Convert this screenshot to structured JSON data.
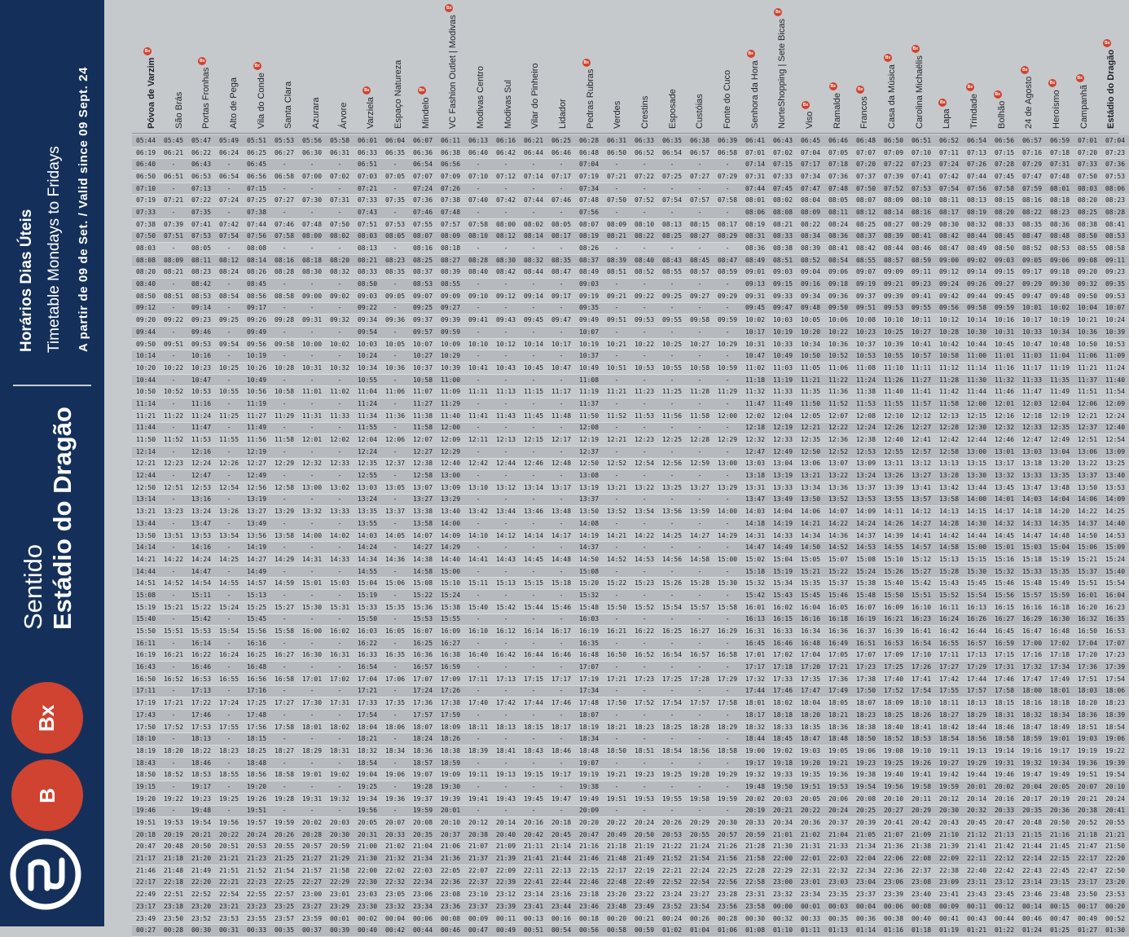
{
  "sidebar": {
    "title": "Horários Dias Úteis",
    "subtitle": "Timetable Mondays to Fridays",
    "validity": "A  partir  de  09  de  Set.  /  Valid  since  09  Sept.  24",
    "direction_label": "Sentido",
    "direction_destination": "Estádio do Dragão",
    "badges": [
      "Bx",
      "B"
    ],
    "logo_icon": "metro-porto-logo-icon"
  },
  "colors": {
    "navy": "#14305a",
    "red": "#cf4330",
    "background": "#c6c9cc"
  },
  "marker_label": "Bx",
  "stops": [
    {
      "name": "Póvoa de Varzim",
      "marker": true,
      "emphasis": true
    },
    {
      "name": "São Brás",
      "marker": false
    },
    {
      "name": "Portas Fronhas",
      "marker": true
    },
    {
      "name": "Alto de Pega",
      "marker": false
    },
    {
      "name": "Vila do Conde",
      "marker": true
    },
    {
      "name": "Santa Clara",
      "marker": false
    },
    {
      "name": "Azurara",
      "marker": false
    },
    {
      "name": "Árvore",
      "marker": false
    },
    {
      "name": "Varziela",
      "marker": true
    },
    {
      "name": "Espaço Natureza",
      "marker": false
    },
    {
      "name": "Mindelo",
      "marker": true
    },
    {
      "name": "VC Fashion Outlet | Modivas",
      "marker": true
    },
    {
      "name": "Modivas Centro",
      "marker": false
    },
    {
      "name": "Modivas Sul",
      "marker": false
    },
    {
      "name": "Vilar do Pinheiro",
      "marker": false
    },
    {
      "name": "Lidador",
      "marker": false
    },
    {
      "name": "Pedras Rubras",
      "marker": true
    },
    {
      "name": "Verdes",
      "marker": false
    },
    {
      "name": "Crestins",
      "marker": false
    },
    {
      "name": "Esposade",
      "marker": false
    },
    {
      "name": "Custóias",
      "marker": false
    },
    {
      "name": "Fonte do Cuco",
      "marker": false
    },
    {
      "name": "Senhora da Hora",
      "marker": true
    },
    {
      "name": "NorteShopping | Sete Bicas",
      "marker": true
    },
    {
      "name": "Viso",
      "marker": true
    },
    {
      "name": "Ramalde",
      "marker": true
    },
    {
      "name": "Francos",
      "marker": true
    },
    {
      "name": "Casa da Música",
      "marker": true
    },
    {
      "name": "Carolina Michaëlis",
      "marker": true
    },
    {
      "name": "Lapa",
      "marker": true
    },
    {
      "name": "Trindade",
      "marker": true
    },
    {
      "name": "Bolhão",
      "marker": true
    },
    {
      "name": "24 de Agosto",
      "marker": true
    },
    {
      "name": "Heroísmo",
      "marker": true
    },
    {
      "name": "Campanhã",
      "marker": true
    },
    {
      "name": "Estádio do Dragão",
      "marker": true,
      "emphasis": true
    }
  ],
  "rows": [
    "05:44 05:45 05:47 05:49 05:51 05:53 05:56 05:58 06:01 06:04 06:07 06:11 06:13 06:16 06:21 06:25 06:28 06:31 06:33 06:35 06:38 06:39 06:41 06:43 06:45 06:46 06:48 06:50 06:51 06:52 06:54 06:56 06:57 06:59 07:01 07:04",
    "06:19 06:21 06:22 06:24 06:25 06:27 06:30 06:31 06:33 06:35 06:36 06:38 06:40 06:42 06:44 06:46 06:48 06:50 06:52 06:54 06:57 06:58 07:01 07:02 07:04 07:05 07:07 07:09 07:10 07:11 07:13 07:15 07:16 07:18 07:20 07:23",
    "06:40 - 06:43 - 06:45 - - - 06:51 - 06:54 06:56 - - - - 07:04 - - - - - 07:14 07:15 07:17 07:18 07:20 07:22 07:23 07:24 07:26 07:28 07:29 07:31 07:33 07:36",
    "06:50 06:51 06:53 06:54 06:56 06:58 07:00 07:02 07:03 07:05 07:07 07:09 07:10 07:12 07:14 07:17 07:19 07:21 07:22 07:25 07:27 07:29 07:31 07:33 07:34 07:36 07:37 07:39 07:41 07:42 07:44 07:45 07:47 07:48 07:50 07:53",
    "07:10 - 07:13 - 07:15 - - - 07:21 - 07:24 07:26 - - - - 07:34 - - - - - 07:44 07:45 07:47 07:48 07:50 07:52 07:53 07:54 07:56 07:58 07:59 08:01 08:03 08:06",
    "07:19 07:21 07:22 07:24 07:25 07:27 07:30 07:31 07:33 07:35 07:36 07:38 07:40 07:42 07:44 07:46 07:48 07:50 07:52 07:54 07:57 07:58 08:01 08:02 08:04 08:05 08:07 08:09 08:10 08:11 08:13 08:15 08:16 08:18 08:20 08:23",
    "07:33 - 07:35 - 07:38 - - - 07:43 - 07:46 07:48 - - - - 07:56 - - - - - 08:06 08:08 08:09 08:11 08:12 08:14 08:16 08:17 08:19 08:20 08:22 08:23 08:25 08:28",
    "07:38 07:39 07:41 07:42 07:44 07:46 07:48 07:50 07:51 07:53 07:55 07:57 07:58 08:00 08:02 08:05 08:07 08:09 08:10 08:13 08:15 08:17 08:19 08:21 08:22 08:24 08:25 08:27 08:29 08:30 08:32 08:33 08:35 08:36 08:38 08:41",
    "07:50 07:51 07:53 07:54 07:56 07:58 08:00 08:02 08:03 08:05 08:07 08:09 08:10 08:12 08:14 08:17 08:19 08:21 08:22 08:25 08:27 08:29 08:31 08:33 08:34 08:36 08:37 08:39 08:41 08:42 08:44 08:45 08:47 08:48 08:50 08:53",
    "08:03 - 08:05 - 08:08 - - - 08:13 - 08:16 08:18 - - - - 08:26 - - - - - 08:36 08:38 08:39 08:41 08:42 08:44 08:46 08:47 08:49 08:50 08:52 08:53 08:55 08:58",
    "08:08 08:09 08:11 08:12 08:14 08:16 08:18 08:20 08:21 08:23 08:25 08:27 08:28 08:30 08:32 08:35 08:37 08:39 08:40 08:43 08:45 08:47 08:49 08:51 08:52 08:54 08:55 08:57 08:59 09:00 09:02 09:03 09:05 09:06 09:08 09:11",
    "08:20 08:21 08:23 08:24 08:26 08:28 08:30 08:32 08:33 08:35 08:37 08:39 08:40 08:42 08:44 08:47 08:49 08:51 08:52 08:55 08:57 08:59 09:01 09:03 09:04 09:06 09:07 09:09 09:11 09:12 09:14 09:15 09:17 09:18 09:20 09:23",
    "08:40 - 08:42 - 08:45 - - - 08:50 - 08:53 08:55 - - - - 09:03 - - - - - 09:13 09:15 09:16 09:18 09:19 09:21 09:23 09:24 09:26 09:27 09:29 09:30 09:32 09:35",
    "08:50 08:51 08:53 08:54 08:56 08:58 09:00 09:02 09:03 09:05 09:07 09:09 09:10 09:12 09:14 09:17 09:19 09:21 09:22 09:25 09:27 09:29 09:31 09:33 09:34 09:36 09:37 09:39 09:41 09:42 09:44 09:45 09:47 09:48 09:50 09:53",
    "09:12 - 09:14 - 09:17 - - - 09:22 - 09:25 09:27 - - - - 09:35 - - - - - 09:45 09:47 09:48 09:50 09:51 09:53 09:55 09:56 09:58 09:59 10:01 10:02 10:04 10:07",
    "09:20 09:22 09:23 09:25 09:26 09:28 09:31 09:32 09:34 09:36 09:37 09:39 09:41 09:43 09:45 09:47 09:49 09:51 09:53 09:55 09:58 09:59 10:02 10:03 10:05 10:06 10:08 10:10 10:11 10:12 10:14 10:16 10:17 10:19 10:21 10:24",
    "09:44 - 09:46 - 09:49 - - - 09:54 - 09:57 09:59 - - - - 10:07 - - - - - 10:17 10:19 10:20 10:22 10:23 10:25 10:27 10:28 10:30 10:31 10:33 10:34 10:36 10:39",
    "09:50 09:51 09:53 09:54 09:56 09:58 10:00 10:02 10:03 10:05 10:07 10:09 10:10 10:12 10:14 10:17 10:19 10:21 10:22 10:25 10:27 10:29 10:31 10:33 10:34 10:36 10:37 10:39 10:41 10:42 10:44 10:45 10:47 10:48 10:50 10:53",
    "10:14 - 10:16 - 10:19 - - - 10:24 - 10:27 10:29 - - - - 10:37 - - - - - 10:47 10:49 10:50 10:52 10:53 10:55 10:57 10:58 11:00 11:01 11:03 11:04 11:06 11:09",
    "10:20 10:22 10:23 10:25 10:26 10:28 10:31 10:32 10:34 10:36 10:37 10:39 10:41 10:43 10:45 10:47 10:49 10:51 10:53 10:55 10:58 10:59 11:02 11:03 11:05 11:06 11:08 11:10 11:11 11:12 11:14 11:16 11:17 11:19 11:21 11:24",
    "10:44 - 10:47 - 10:49 - - - 10:55 - 10:58 11:00 - - - - 11:08 - - - - - 11:18 11:19 11:21 11:22 11:24 11:26 11:27 11:28 11:30 11:32 11:33 11:35 11:37 11:40",
    "10:50 10:52 10:53 10:55 10:56 10:58 11:01 11:02 11:04 11:06 11:07 11:09 11:11 11:13 11:15 11:17 11:19 11:21 11:23 11:25 11:28 11:29 11:32 11:33 11:35 11:36 11:38 11:40 11:41 11:42 11:44 11:46 11:47 11:49 11:51 11:54",
    "11:14 - 11:16 - 11:19 - - - 11:24 - 11:27 11:29 - - - - 11:37 - - - - - 11:47 11:49 11:50 11:52 11:53 11:55 11:57 11:58 12:00 12:01 12:03 12:04 12:06 12:09",
    "11:21 11:22 11:24 11:25 11:27 11:29 11:31 11:33 11:34 11:36 11:38 11:40 11:41 11:43 11:45 11:48 11:50 11:52 11:53 11:56 11:58 12:00 12:02 12:04 12:05 12:07 12:08 12:10 12:12 12:13 12:15 12:16 12:18 12:19 12:21 12:24",
    "11:44 - 11:47 - 11:49 - - - 11:55 - 11:58 12:00 - - - - 12:08 - - - - - 12:18 12:19 12:21 12:22 12:24 12:26 12:27 12:28 12:30 12:32 12:33 12:35 12:37 12:40",
    "11:50 11:52 11:53 11:55 11:56 11:58 12:01 12:02 12:04 12:06 12:07 12:09 12:11 12:13 12:15 12:17 12:19 12:21 12:23 12:25 12:28 12:29 12:32 12:33 12:35 12:36 12:38 12:40 12:41 12:42 12:44 12:46 12:47 12:49 12:51 12:54",
    "12:14 - 12:16 - 12:19 - - - 12:24 - 12:27 12:29 - - - - 12:37 - - - - - 12:47 12:49 12:50 12:52 12:53 12:55 12:57 12:58 13:00 13:01 13:03 13:04 13:06 13:09",
    "12:21 12:23 12:24 12:26 12:27 12:29 12:32 12:33 12:35 12:37 12:38 12:40 12:42 12:44 12:46 12:48 12:50 12:52 12:54 12:56 12:59 13:00 13:03 13:04 13:06 13:07 13:09 13:11 13:12 13:13 13:15 13:17 13:18 13:20 13:22 13:25",
    "12:44 - 12:47 - 12:49 - - - 12:55 - 12:58 13:00 - - - - 13:08 - - - - - 13:18 13:19 13:21 13:22 13:24 13:26 13:27 13:28 13:30 13:32 13:33 13:35 13:37 13:40",
    "12:50 12:51 12:53 12:54 12:56 12:58 13:00 13:02 13:03 13:05 13:07 13:09 13:10 13:12 13:14 13:17 13:19 13:21 13:22 13:25 13:27 13:29 13:31 13:33 13:34 13:36 13:37 13:39 13:41 13:42 13:44 13:45 13:47 13:48 13:50 13:53",
    "13:14 - 13:16 - 13:19 - - - 13:24 - 13:27 13:29 - - - - 13:37 - - - - - 13:47 13:49 13:50 13:52 13:53 13:55 13:57 13:58 14:00 14:01 14:03 14:04 14:06 14:09",
    "13:21 13:23 13:24 13:26 13:27 13:29 13:32 13:33 13:35 13:37 13:38 13:40 13:42 13:44 13:46 13:48 13:50 13:52 13:54 13:56 13:59 14:00 14:03 14:04 14:06 14:07 14:09 14:11 14:12 14:13 14:15 14:17 14:18 14:20 14:22 14:25",
    "13:44 - 13:47 - 13:49 - - - 13:55 - 13:58 14:00 - - - - 14:08 - - - - - 14:18 14:19 14:21 14:22 14:24 14:26 14:27 14:28 14:30 14:32 14:33 14:35 14:37 14:40",
    "13:50 13:51 13:53 13:54 13:56 13:58 14:00 14:02 14:03 14:05 14:07 14:09 14:10 14:12 14:14 14:17 14:19 14:21 14:22 14:25 14:27 14:29 14:31 14:33 14:34 14:36 14:37 14:39 14:41 14:42 14:44 14:45 14:47 14:48 14:50 14:53",
    "14:14 - 14:16 - 14:19 - - - 14:24 - 14:27 14:29 - - - - 14:37 - - - - - 14:47 14:49 14:50 14:52 14:53 14:55 14:57 14:58 15:00 15:01 15:03 15:04 15:06 15:09",
    "14:21 14:22 14:24 14:25 14:27 14:29 14:31 14:33 14:34 14:36 14:38 14:40 14:41 14:43 14:45 14:48 14:50 14:52 14:53 14:56 14:58 15:00 15:02 15:04 15:05 15:07 15:08 15:10 15:12 15:13 15:15 15:16 15:18 15:19 15:21 15:24",
    "14:44 - 14:47 - 14:49 - - - 14:55 - 14:58 15:00 - - - - 15:08 - - - - - 15:18 15:19 15:21 15:22 15:24 15:26 15:27 15:28 15:30 15:32 15:33 15:35 15:37 15:40",
    "14:51 14:52 14:54 14:55 14:57 14:59 15:01 15:03 15:04 15:06 15:08 15:10 15:11 15:13 15:15 15:18 15:20 15:22 15:23 15:26 15:28 15:30 15:32 15:34 15:35 15:37 15:38 15:40 15:42 15:43 15:45 15:46 15:48 15:49 15:51 15:54",
    "15:08 - 15:11 - 15:13 - - - 15:19 - 15:22 15:24 - - - - 15:32 - - - - - 15:42 15:43 15:45 15:46 15:48 15:50 15:51 15:52 15:54 15:56 15:57 15:59 16:01 16:04",
    "15:19 15:21 15:22 15:24 15:25 15:27 15:30 15:31 15:33 15:35 15:36 15:38 15:40 15:42 15:44 15:46 15:48 15:50 15:52 15:54 15:57 15:58 16:01 16:02 16:04 16:05 16:07 16:09 16:10 16:11 16:13 16:15 16:16 16:18 16:20 16:23",
    "15:40 - 15:42 - 15:45 - - - 15:50 - 15:53 15:55 - - - - 16:03 - - - - - 16:13 16:15 16:16 16:18 16:19 16:21 16:23 16:24 16:26 16:27 16:29 16:30 16:32 16:35",
    "15:50 15:51 15:53 15:54 15:56 15:58 16:00 16:02 16:03 16:05 16:07 16:09 16:10 16:12 16:14 16:17 16:19 16:21 16:22 16:25 16:27 16:29 16:31 16:33 16:34 16:36 16:37 16:39 16:41 16:42 16:44 16:45 16:47 16:48 16:50 16:53",
    "16:11 - 16:14 - 16:16 - - - 16:22 - 16:25 16:27 - - - - 16:35 - - - - - 16:45 16:46 16:48 16:49 16:51 16:53 16:54 16:55 16:57 16:59 17:00 17:02 17:04 17:07",
    "16:19 16:21 16:22 16:24 16:25 16:27 16:30 16:31 16:33 16:35 16:36 16:38 16:40 16:42 16:44 16:46 16:48 16:50 16:52 16:54 16:57 16:58 17:01 17:02 17:04 17:05 17:07 17:09 17:10 17:11 17:13 17:15 17:16 17:18 17:20 17:23",
    "16:43 - 16:46 - 16:48 - - - 16:54 - 16:57 16:59 - - - - 17:07 - - - - - 17:17 17:18 17:20 17:21 17:23 17:25 17:26 17:27 17:29 17:31 17:32 17:34 17:36 17:39",
    "16:50 16:52 16:53 16:55 16:56 16:58 17:01 17:02 17:04 17:06 17:07 17:09 17:11 17:13 17:15 17:17 17:19 17:21 17:23 17:25 17:28 17:29 17:32 17:33 17:35 17:36 17:38 17:40 17:41 17:42 17:44 17:46 17:47 17:49 17:51 17:54",
    "17:11 - 17:13 - 17:16 - - - 17:21 - 17:24 17:26 - - - - 17:34 - - - - - 17:44 17:46 17:47 17:49 17:50 17:52 17:54 17:55 17:57 17:58 18:00 18:01 18:03 18:06",
    "17:19 17:21 17:22 17:24 17:25 17:27 17:30 17:31 17:33 17:35 17:36 17:38 17:40 17:42 17:44 17:46 17:48 17:50 17:52 17:54 17:57 17:58 18:01 18:02 18:04 18:05 18:07 18:09 18:10 18:11 18:13 18:15 18:16 18:18 18:20 18:23",
    "17:43 - 17:46 - 17:48 - - - 17:54 - 17:57 17:59 - - - - 18:07 - - - - - 18:17 18:18 18:20 18:21 18:23 18:25 18:26 18:27 18:29 18:31 18:32 18:34 18:36 18:39",
    "17:50 17:52 17:53 17:55 17:56 17:58 18:01 18:02 18:04 18:06 18:07 18:09 18:11 18:13 18:15 18:17 18:19 18:21 18:23 18:25 18:28 18:29 18:32 18:33 18:35 18:36 18:38 18:40 18:41 18:42 18:44 18:46 18:47 18:49 18:51 18:54",
    "18:10 - 18:13 - 18:15 - - - 18:21 - 18:24 18:26 - - - - 18:34 - - - - - 18:44 18:45 18:47 18:48 18:50 18:52 18:53 18:54 18:56 18:58 18:59 19:01 19:03 19:06",
    "18:19 18:20 18:22 18:23 18:25 18:27 18:29 18:31 18:32 18:34 18:36 18:38 18:39 18:41 18:43 18:46 18:48 18:50 18:51 18:54 18:56 18:58 19:00 19:02 19:03 19:05 19:06 19:08 19:10 19:11 19:13 19:14 19:16 19:17 19:19 19:22",
    "18:43 - 18:46 - 18:48 - - - 18:54 - 18:57 18:59 - - - - 19:07 - - - - - 19:17 19:18 19:20 19:21 19:23 19:25 19:26 19:27 19:29 19:31 19:32 19:34 19:36 19:39",
    "18:50 18:52 18:53 18:55 18:56 18:58 19:01 19:02 19:04 19:06 19:07 19:09 19:11 19:13 19:15 19:17 19:19 19:21 19:23 19:25 19:28 19:29 19:32 19:33 19:35 19:36 19:38 19:40 19:41 19:42 19:44 19:46 19:47 19:49 19:51 19:54",
    "19:15 - 19:17 - 19:20 - - - 19:25 - 19:28 19:30 - - - - 19:38 - - - - - 19:48 19:50 19:51 19:53 19:54 19:56 19:58 19:59 20:01 20:02 20:04 20:05 20:07 20:10",
    "19:20 19:22 19:23 19:25 19:26 19:28 19:31 19:32 19:34 19:36 19:37 19:39 19:41 19:43 19:45 19:47 19:49 19:51 19:53 19:55 19:58 19:59 20:02 20:03 20:05 20:06 20:08 20:10 20:11 20:12 20:14 20:16 20:17 20:19 20:21 20:24",
    "19:46 - 19:48 - 19:51 - - - 19:56 - 19:59 20:01 - - - - 20:09 - - - - - 20:19 20:21 20:22 20:24 20:25 20:27 20:29 20:30 20:32 20:33 20:35 20:36 20:38 20:41",
    "19:51 19:53 19:54 19:56 19:57 19:59 20:02 20:03 20:05 20:07 20:08 20:10 20:12 20:14 20:16 20:18 20:20 20:22 20:24 20:26 20:29 20:30 20:33 20:34 20:36 20:37 20:39 20:41 20:42 20:43 20:45 20:47 20:48 20:50 20:52 20:55",
    "20:18 20:19 20:21 20:22 20:24 20:26 20:28 20:30 20:31 20:33 20:35 20:37 20:38 20:40 20:42 20:45 20:47 20:49 20:50 20:53 20:55 20:57 20:59 21:01 21:02 21:04 21:05 21:07 21:09 21:10 21:12 21:13 21:15 21:16 21:18 21:21",
    "20:47 20:48 20:50 20:51 20:53 20:55 20:57 20:59 21:00 21:02 21:04 21:06 21:07 21:09 21:11 21:14 21:16 21:18 21:19 21:22 21:24 21:26 21:28 21:30 21:31 21:33 21:34 21:36 21:38 21:39 21:41 21:42 21:44 21:45 21:47 21:50",
    "21:17 21:18 21:20 21:21 21:23 21:25 21:27 21:29 21:30 21:32 21:34 21:36 21:37 21:39 21:41 21:44 21:46 21:48 21:49 21:52 21:54 21:56 21:58 22:00 22:01 22:03 22:04 22:06 22:08 22:09 22:11 22:12 22:14 22:15 22:17 22:20",
    "21:46 21:48 21:49 21:51 21:52 21:54 21:57 21:58 22:00 22:02 22:03 22:05 22:07 22:09 22:11 22:13 22:15 22:17 22:19 22:21 22:24 22:25 22:28 22:29 22:31 22:32 22:34 22:36 22:37 22:38 22:40 22:42 22:43 22:45 22:47 22:50",
    "22:17 22:18 22:20 22:21 22:23 22:25 22:27 22:29 22:30 22:32 22:34 22:36 22:37 22:39 22:41 22:44 22:46 22:48 22:49 22:52 22:54 22:56 22:58 23:00 23:01 23:03 23:04 23:06 23:08 23:09 23:11 23:12 23:14 23:15 23:17 23:20",
    "22:49 22:51 22:52 22:54 22:55 22:57 23:00 23:01 23:03 23:05 23:06 23:08 23:10 23:12 23:14 23:16 23:18 23:20 23:22 23:24 23:27 23:28 23:31 23:32 23:34 23:35 23:37 23:39 23:40 23:41 23:43 23:45 23:46 23:48 23:50 23:53",
    "23:17 23:18 23:20 23:21 23:23 23:25 23:27 23:29 23:30 23:32 23:34 23:36 23:37 23:39 23:41 23:44 23:46 23:48 23:49 23:52 23:54 23:56 23:58 00:00 00:01 00:03 00:04 00:06 00:08 00:09 00:11 00:12 00:14 00:15 00:17 00:20",
    "23:49 23:50 23:52 23:53 23:55 23:57 23:59 00:01 00:02 00:04 00:06 00:08 00:09 00:11 00:13 00:16 00:18 00:20 00:21 00:24 00:26 00:28 00:30 00:32 00:33 00:35 00:36 00:38 00:40 00:41 00:43 00:44 00:46 00:47 00:49 00:52",
    "00:27 00:28 00:30 00:31 00:33 00:35 00:37 00:39 00:40 00:42 00:44 00:46 00:47 00:49 00:51 00:54 00:56 00:58 00:59 01:02 01:04 01:06 01:08 01:10 01:11 01:13 01:14 01:16 01:18 01:19 01:21 01:22 01:24 01:25 01:27 01:30"
  ]
}
